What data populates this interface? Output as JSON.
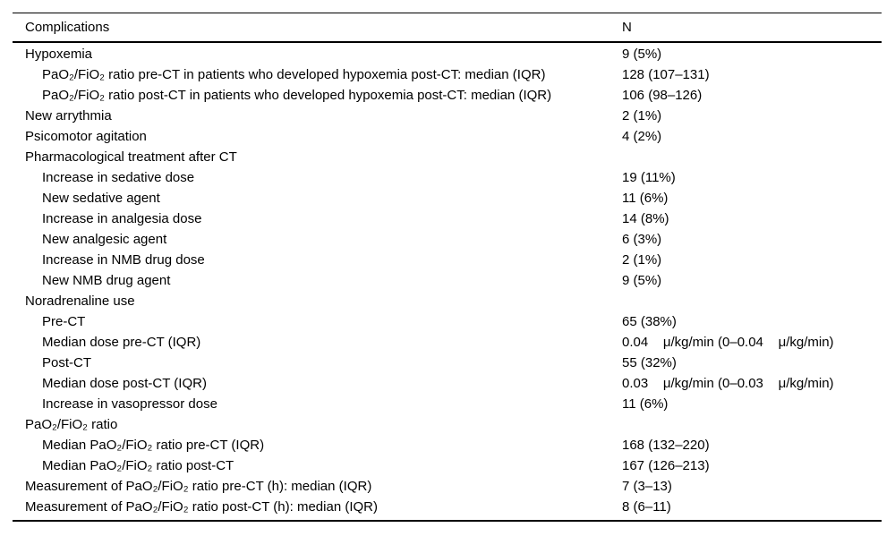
{
  "table": {
    "columns": [
      {
        "label": "Complications"
      },
      {
        "label": "N"
      }
    ],
    "rows": [
      {
        "label": "Hypoxemia",
        "value": "9 (5%)",
        "indent": 0
      },
      {
        "label": "PaO₂/FiO₂ ratio pre-CT in patients who developed hypoxemia post-CT: median (IQR)",
        "value": "128 (107–131)",
        "indent": 1
      },
      {
        "label": "PaO₂/FiO₂ ratio post-CT in patients who developed hypoxemia post-CT: median (IQR)",
        "value": "106 (98–126)",
        "indent": 1
      },
      {
        "label": "New arrythmia",
        "value": "2 (1%)",
        "indent": 0
      },
      {
        "label": "Psicomotor agitation",
        "value": "4 (2%)",
        "indent": 0
      },
      {
        "label": "Pharmacological treatment after CT",
        "value": "",
        "indent": 0
      },
      {
        "label": "Increase in sedative dose",
        "value": "19 (11%)",
        "indent": 1
      },
      {
        "label": "New sedative agent",
        "value": "11 (6%)",
        "indent": 1
      },
      {
        "label": "Increase in analgesia dose",
        "value": "14 (8%)",
        "indent": 1
      },
      {
        "label": "New analgesic agent",
        "value": "6 (3%)",
        "indent": 1
      },
      {
        "label": "Increase in NMB drug dose",
        "value": "2 (1%)",
        "indent": 1
      },
      {
        "label": "New NMB drug agent",
        "value": "9 (5%)",
        "indent": 1
      },
      {
        "label": "Noradrenaline use",
        "value": "",
        "indent": 0
      },
      {
        "label": "Pre-CT",
        "value": "65 (38%)",
        "indent": 1
      },
      {
        "label": "Median dose pre-CT (IQR)",
        "value": "0.04    μ/kg/min (0–0.04    μ/kg/min)",
        "indent": 1
      },
      {
        "label": "Post-CT",
        "value": "55 (32%)",
        "indent": 1
      },
      {
        "label": "Median dose post-CT (IQR)",
        "value": "0.03    μ/kg/min (0–0.03    μ/kg/min)",
        "indent": 1
      },
      {
        "label": "Increase in vasopressor dose",
        "value": "11 (6%)",
        "indent": 1
      },
      {
        "label": "PaO₂/FiO₂ ratio",
        "value": "",
        "indent": 0
      },
      {
        "label": "Median PaO₂/FiO₂ ratio pre-CT (IQR)",
        "value": "168 (132–220)",
        "indent": 1
      },
      {
        "label": "Median PaO₂/FiO₂ ratio post-CT",
        "value": "167 (126–213)",
        "indent": 1
      },
      {
        "label": "Measurement of PaO₂/FiO₂ ratio pre-CT (h): median (IQR)",
        "value": "7 (3–13)",
        "indent": 0
      },
      {
        "label": "Measurement of PaO₂/FiO₂ ratio post-CT (h): median (IQR)",
        "value": "8 (6–11)",
        "indent": 0
      }
    ]
  }
}
